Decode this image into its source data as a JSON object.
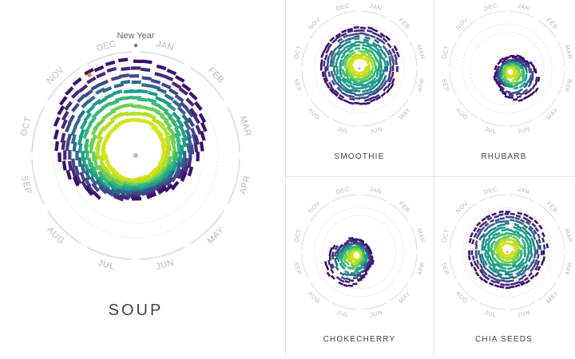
{
  "months": [
    "JAN",
    "FEB",
    "MAR",
    "APR",
    "MAY",
    "JUN",
    "JUL",
    "AUG",
    "SEP",
    "OCT",
    "NOV",
    "DEC"
  ],
  "palette": [
    "#3b0f70",
    "#482878",
    "#3e4a89",
    "#31688e",
    "#26828e",
    "#1f9e89",
    "#35b779",
    "#6ece58",
    "#b5de2b",
    "#d8e219"
  ],
  "marker_colors": {
    "new_year": "#777777",
    "highlight": "#ff7f2a",
    "center": "#bbbbbb"
  },
  "chart_data": [
    {
      "type": "radial",
      "title": "SOUP",
      "annotation": "New Year",
      "mode": "seasonal",
      "description_values": {
        "peak_month": "DEC",
        "trough_month": "JUL",
        "amplitude": 0.52
      }
    },
    {
      "type": "radial",
      "title": "SMOOTHIE",
      "mode": "spiral-growth",
      "description_values": {
        "peak_month": "JAN",
        "amplitude": 0.3
      }
    },
    {
      "type": "radial",
      "title": "RHUBARB",
      "mode": "offset-season",
      "description_values": {
        "peak_month": "MAY",
        "amplitude": 0.4
      }
    },
    {
      "type": "radial",
      "title": "CHOKECHERRY",
      "mode": "offset-season",
      "description_values": {
        "peak_month": "AUG",
        "amplitude": 0.42
      }
    },
    {
      "type": "radial",
      "title": "CHIA SEEDS",
      "mode": "spiral-growth",
      "description_values": {
        "peak_month": "JAN",
        "amplitude": 0.25
      }
    }
  ]
}
